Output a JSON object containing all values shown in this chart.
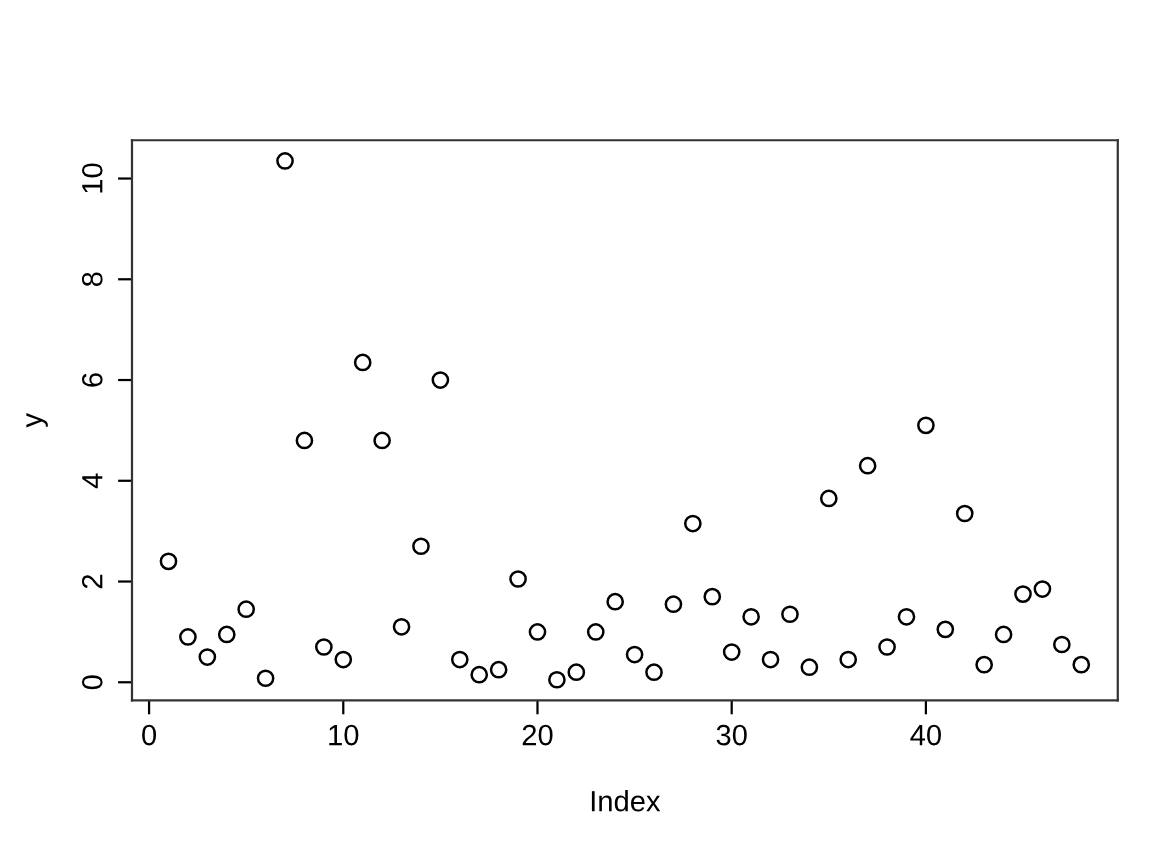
{
  "chart_data": {
    "type": "scatter",
    "xlabel": "Index",
    "ylabel": "y",
    "x": [
      1,
      2,
      3,
      4,
      5,
      6,
      7,
      8,
      9,
      10,
      11,
      12,
      13,
      14,
      15,
      16,
      17,
      18,
      19,
      20,
      21,
      22,
      23,
      24,
      25,
      26,
      27,
      28,
      29,
      30,
      31,
      32,
      33,
      34,
      35,
      36,
      37,
      38,
      39,
      40,
      41,
      42,
      43,
      44,
      45,
      46,
      47,
      48
    ],
    "values": [
      2.4,
      0.9,
      0.5,
      0.95,
      1.45,
      0.08,
      10.35,
      4.8,
      0.7,
      0.45,
      6.35,
      4.8,
      1.1,
      2.7,
      6.0,
      0.45,
      0.15,
      0.25,
      2.05,
      1.0,
      0.05,
      0.2,
      1.0,
      1.6,
      0.55,
      0.2,
      1.55,
      3.15,
      1.7,
      0.6,
      1.3,
      0.45,
      1.35,
      0.3,
      3.65,
      0.45,
      4.3,
      0.7,
      1.3,
      5.1,
      1.05,
      3.35,
      0.35,
      0.95,
      1.75,
      1.85,
      0.75,
      0.35
    ],
    "color": "#000000",
    "marker": "circle",
    "xlim": [
      -0.88,
      49.88
    ],
    "ylim": [
      -0.36,
      10.76
    ],
    "xticks": [
      0,
      10,
      20,
      30,
      40
    ],
    "yticks": [
      0,
      2,
      4,
      6,
      8,
      10
    ],
    "grid": false,
    "legend": false
  }
}
